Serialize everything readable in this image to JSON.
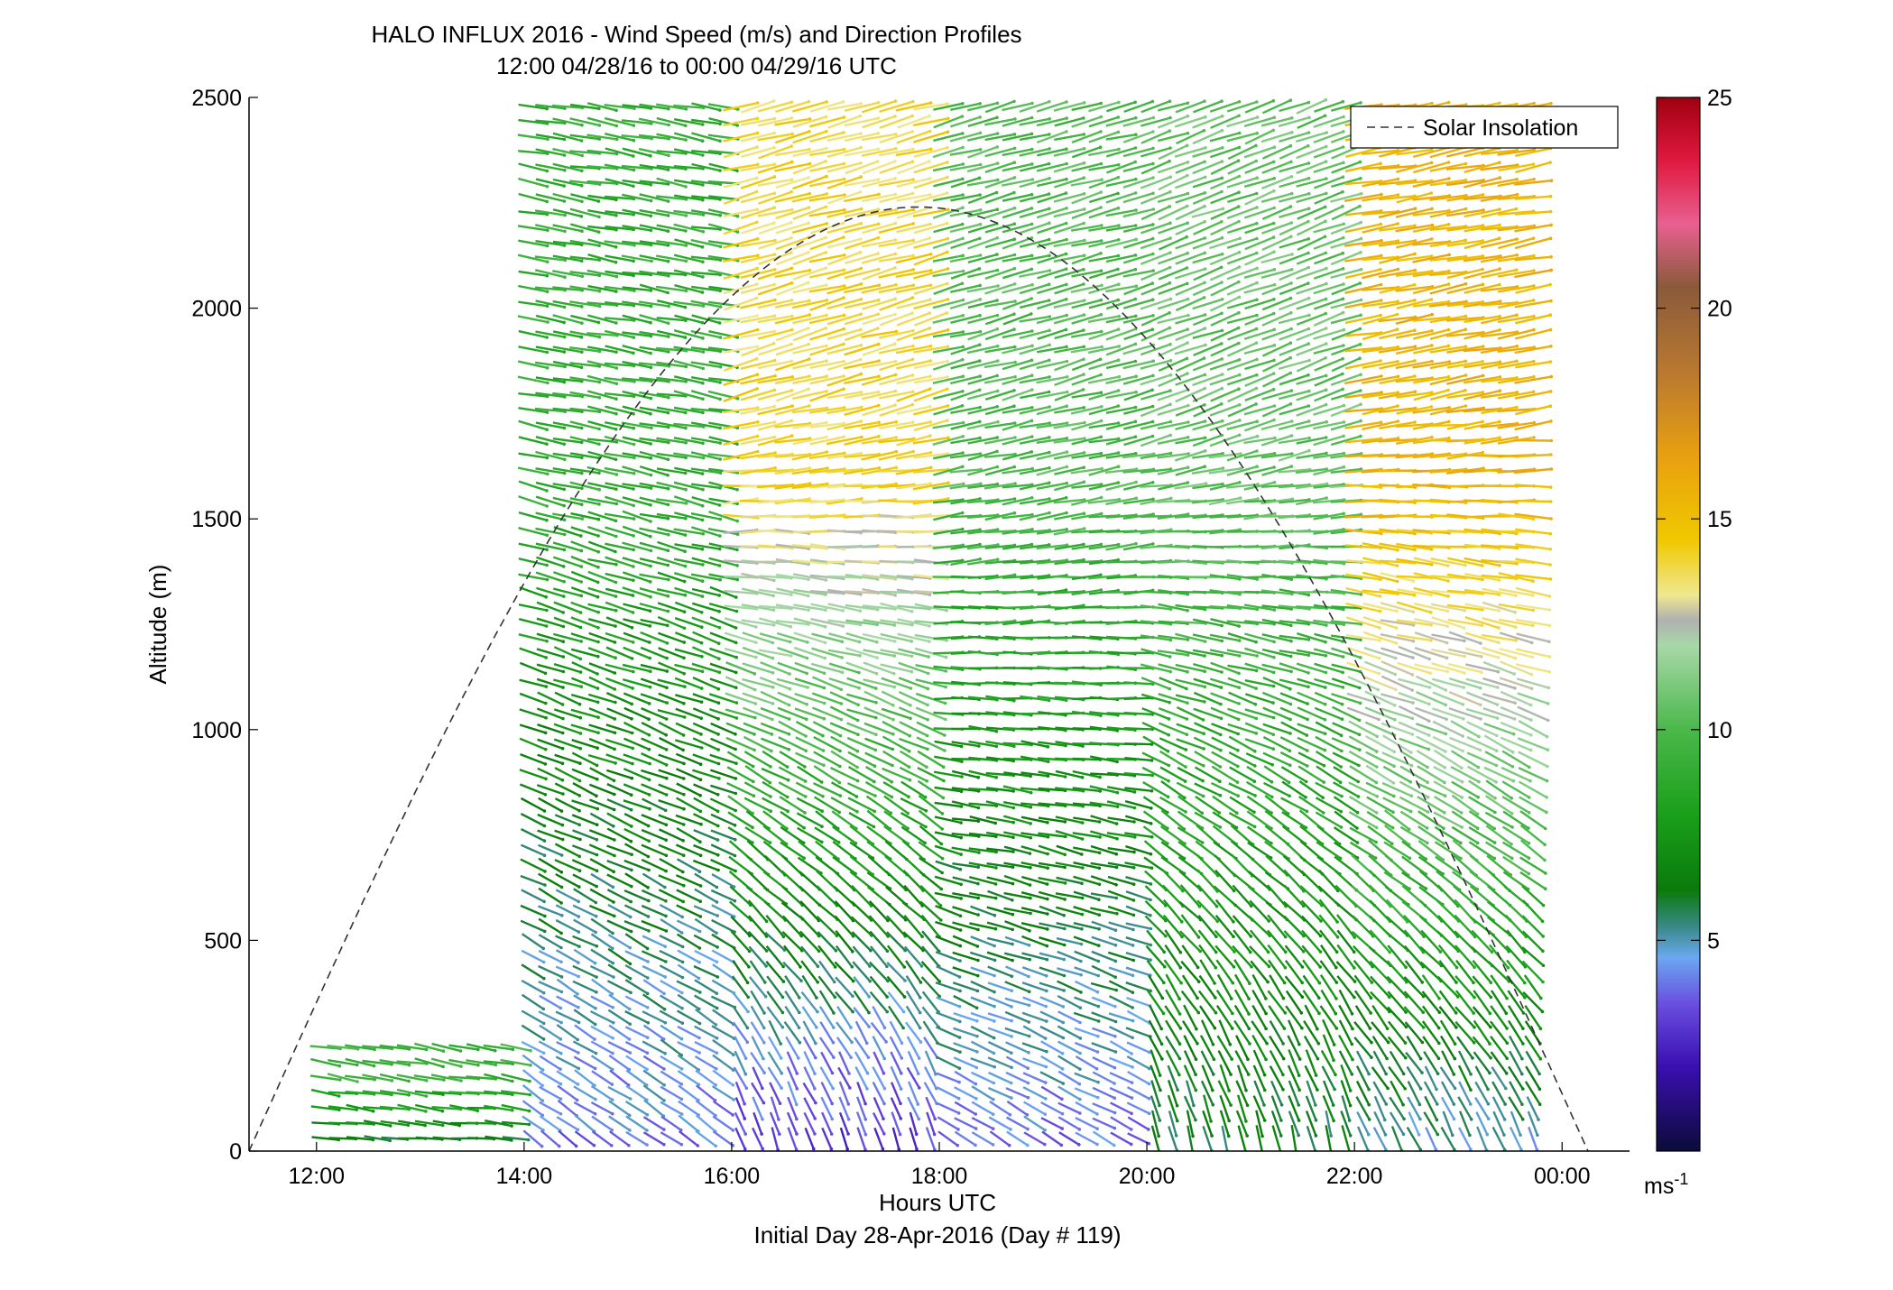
{
  "chart_data": {
    "type": "scatter",
    "title": "HALO INFLUX 2016 - Wind Speed (m/s) and Direction Profiles",
    "subtitle": "12:00 04/28/16 to 00:00 04/29/16  UTC",
    "xlabel": "Hours UTC",
    "xlabel_sub": "Initial Day 28-Apr-2016 (Day # 119)",
    "ylabel": "Altitude (m)",
    "xlim": [
      11.35,
      24.65
    ],
    "ylim": [
      0,
      2500
    ],
    "x_ticks": [
      {
        "value": 12,
        "label": "12:00"
      },
      {
        "value": 14,
        "label": "14:00"
      },
      {
        "value": 16,
        "label": "16:00"
      },
      {
        "value": 18,
        "label": "18:00"
      },
      {
        "value": 20,
        "label": "20:00"
      },
      {
        "value": 22,
        "label": "22:00"
      },
      {
        "value": 24,
        "label": "00:00"
      }
    ],
    "y_ticks": [
      {
        "value": 0,
        "label": "0"
      },
      {
        "value": 500,
        "label": "500"
      },
      {
        "value": 1000,
        "label": "1000"
      },
      {
        "value": 1500,
        "label": "1500"
      },
      {
        "value": 2000,
        "label": "2000"
      },
      {
        "value": 2500,
        "label": "2500"
      }
    ],
    "legend": {
      "entries": [
        "Solar Insolation"
      ],
      "position": "top-right"
    },
    "solar_insolation": {
      "style": "dashed",
      "color": "#333333",
      "start_hour": 11.35,
      "end_hour": 24.25,
      "peak_hour": 17.8,
      "peak_altitude": 2240
    },
    "colorbar": {
      "min": 0,
      "max": 25,
      "ticks": [
        {
          "value": 5,
          "label": "5"
        },
        {
          "value": 10,
          "label": "10"
        },
        {
          "value": 15,
          "label": "15"
        },
        {
          "value": 20,
          "label": "20"
        },
        {
          "value": 25,
          "label": "25"
        }
      ],
      "unit_label": "ms",
      "unit_exponent": "-1",
      "stops": [
        {
          "v": 0,
          "c": "#0b0b3a"
        },
        {
          "v": 2,
          "c": "#3a0fb0"
        },
        {
          "v": 3.5,
          "c": "#6a4fe0"
        },
        {
          "v": 4.6,
          "c": "#6aa8f0"
        },
        {
          "v": 5.3,
          "c": "#3a8a8a"
        },
        {
          "v": 6.2,
          "c": "#0a7a0a"
        },
        {
          "v": 8,
          "c": "#1aa01a"
        },
        {
          "v": 10,
          "c": "#4ab84a"
        },
        {
          "v": 12,
          "c": "#a8d8a8"
        },
        {
          "v": 12.6,
          "c": "#b0b0b0"
        },
        {
          "v": 13.2,
          "c": "#f0e890"
        },
        {
          "v": 14.5,
          "c": "#f0c800"
        },
        {
          "v": 16.5,
          "c": "#e8a010"
        },
        {
          "v": 18.5,
          "c": "#b87830"
        },
        {
          "v": 20.5,
          "c": "#8a5a3a"
        },
        {
          "v": 22,
          "c": "#e86090"
        },
        {
          "v": 23.5,
          "c": "#e01840"
        },
        {
          "v": 25,
          "c": "#a00010"
        }
      ]
    },
    "segments": [
      {
        "t_start": 12.0,
        "t_end": 14.0,
        "z_min": 30,
        "z_max": 280,
        "speed_low": 6.5,
        "speed_high": 9.5,
        "dir_low": 95,
        "dir_high": 100
      },
      {
        "t_start": 14.0,
        "t_end": 16.0,
        "z_min": 30,
        "z_max": 2500,
        "speed_low": 4.0,
        "speed_high": 9.0,
        "dir_low": 125,
        "dir_high": 100
      },
      {
        "t_start": 16.0,
        "t_end": 18.0,
        "z_min": 30,
        "z_max": 2500,
        "speed_low": 3.0,
        "speed_high": 14.0,
        "dir_low": 160,
        "dir_high": 75
      },
      {
        "t_start": 18.0,
        "t_end": 20.0,
        "z_min": 30,
        "z_max": 2500,
        "speed_low": 4.0,
        "speed_high": 10.0,
        "dir_low": 120,
        "dir_high": 75
      },
      {
        "t_start": 20.0,
        "t_end": 22.0,
        "z_min": 30,
        "z_max": 2500,
        "speed_low": 6.0,
        "speed_high": 10.5,
        "dir_low": 165,
        "dir_high": 70
      },
      {
        "t_start": 22.0,
        "t_end": 23.8,
        "z_min": 30,
        "z_max": 2500,
        "speed_low": 5.0,
        "speed_high": 15.5,
        "dir_low": 155,
        "dir_high": 80
      }
    ]
  }
}
